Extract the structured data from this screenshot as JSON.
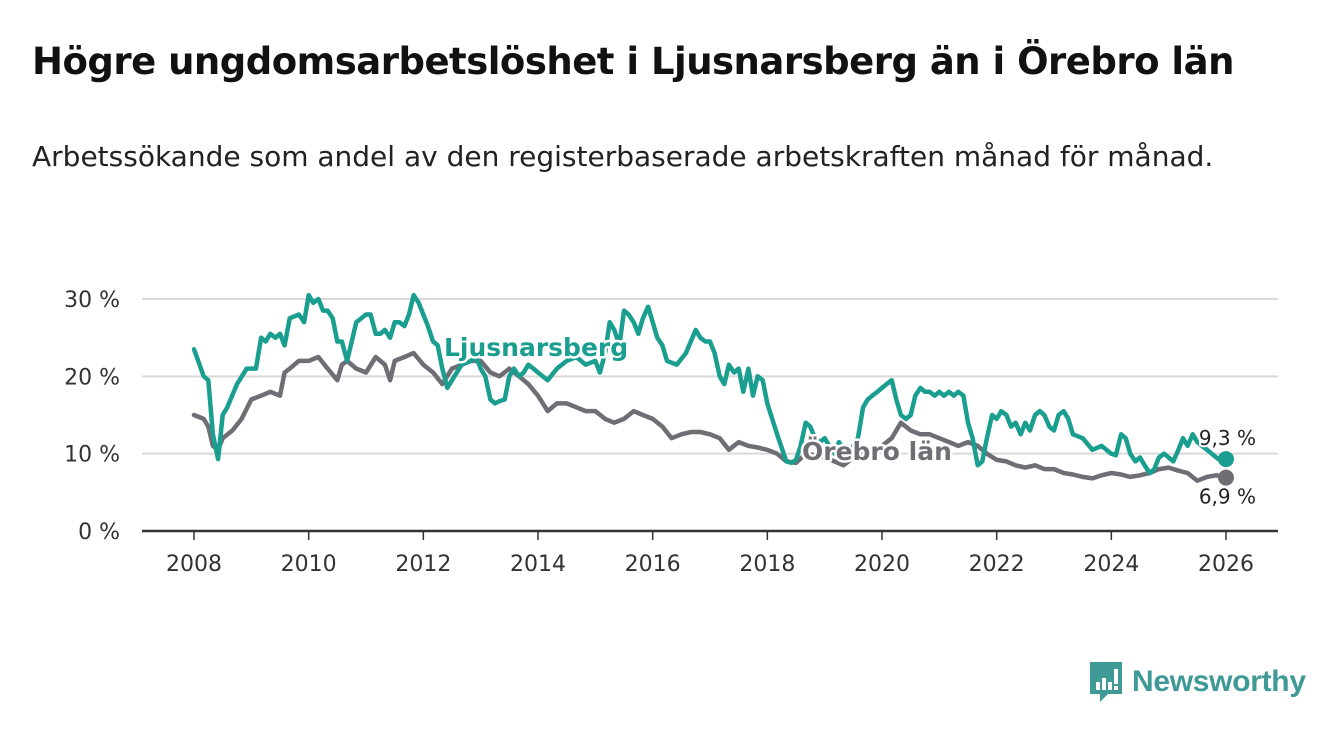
{
  "header": {
    "title": "Högre ungdomsarbetslöshet i Ljusnarsberg än i Örebro län",
    "subtitle": "Arbetssökande som andel av den registerbaserade arbetskraften månad för månad."
  },
  "branding": {
    "logo_text": "Newsworthy",
    "logo_icon": "bar-chart-speech-bubble-icon",
    "color": "#3f9a97"
  },
  "chart_data": {
    "type": "line",
    "title": "Högre ungdomsarbetslöshet i Ljusnarsberg än i Örebro län",
    "subtitle": "Arbetssökande som andel av den registerbaserade arbetskraften månad för månad.",
    "xlabel": "",
    "ylabel": "",
    "xlim": [
      2007.75,
      2027.0
    ],
    "ylim": [
      0,
      30
    ],
    "grid": true,
    "x_ticks": [
      2008,
      2010,
      2012,
      2014,
      2016,
      2018,
      2020,
      2022,
      2024,
      2026
    ],
    "x_tick_labels": [
      "2008",
      "2010",
      "2012",
      "2014",
      "2016",
      "2018",
      "2020",
      "2022",
      "2024",
      "2026"
    ],
    "y_ticks": [
      0,
      10,
      20,
      30
    ],
    "y_tick_labels": [
      "0 %",
      "10 %",
      "20 %",
      "30 %"
    ],
    "legend": "inline labels",
    "series": [
      {
        "name": "Ljusnarsberg",
        "color": "#1a9e8f",
        "end_label": "9,3 %",
        "x": [
          2008.0,
          2008.17,
          2008.25,
          2008.33,
          2008.42,
          2008.5,
          2008.58,
          2008.75,
          2008.92,
          2009.08,
          2009.17,
          2009.25,
          2009.33,
          2009.42,
          2009.5,
          2009.58,
          2009.67,
          2009.83,
          2009.92,
          2010.0,
          2010.08,
          2010.17,
          2010.25,
          2010.33,
          2010.42,
          2010.5,
          2010.58,
          2010.67,
          2010.83,
          2011.0,
          2011.08,
          2011.17,
          2011.25,
          2011.33,
          2011.42,
          2011.5,
          2011.58,
          2011.67,
          2011.75,
          2011.83,
          2011.92,
          2012.0,
          2012.08,
          2012.17,
          2012.25,
          2012.33,
          2012.42,
          2012.5,
          2012.67,
          2012.83,
          2012.92,
          2013.0,
          2013.08,
          2013.17,
          2013.25,
          2013.33,
          2013.42,
          2013.5,
          2013.58,
          2013.67,
          2013.75,
          2013.83,
          2013.92,
          2014.0,
          2014.17,
          2014.33,
          2014.5,
          2014.67,
          2014.83,
          2015.0,
          2015.08,
          2015.17,
          2015.25,
          2015.33,
          2015.42,
          2015.5,
          2015.58,
          2015.67,
          2015.75,
          2015.83,
          2015.92,
          2016.0,
          2016.08,
          2016.17,
          2016.25,
          2016.42,
          2016.58,
          2016.75,
          2016.83,
          2016.92,
          2017.0,
          2017.08,
          2017.17,
          2017.25,
          2017.33,
          2017.42,
          2017.5,
          2017.58,
          2017.67,
          2017.75,
          2017.83,
          2017.92,
          2018.0,
          2018.17,
          2018.33,
          2018.42,
          2018.5,
          2018.58,
          2018.67,
          2018.75,
          2018.83,
          2018.92,
          2019.0,
          2019.08,
          2019.17,
          2019.25,
          2019.33,
          2019.42,
          2019.5,
          2019.58,
          2019.67,
          2019.75,
          2019.83,
          2019.92,
          2020.0,
          2020.08,
          2020.17,
          2020.25,
          2020.33,
          2020.42,
          2020.5,
          2020.58,
          2020.67,
          2020.75,
          2020.83,
          2020.92,
          2021.0,
          2021.08,
          2021.17,
          2021.25,
          2021.33,
          2021.42,
          2021.5,
          2021.58,
          2021.67,
          2021.75,
          2021.83,
          2021.92,
          2022.0,
          2022.08,
          2022.17,
          2022.25,
          2022.33,
          2022.42,
          2022.5,
          2022.58,
          2022.67,
          2022.75,
          2022.83,
          2022.92,
          2023.0,
          2023.08,
          2023.17,
          2023.25,
          2023.33,
          2023.5,
          2023.67,
          2023.83,
          2024.0,
          2024.08,
          2024.17,
          2024.25,
          2024.33,
          2024.42,
          2024.5,
          2024.58,
          2024.67,
          2024.75,
          2024.83,
          2024.92,
          2025.0,
          2025.08,
          2025.17,
          2025.25,
          2025.33,
          2025.42,
          2025.5,
          2025.58,
          2025.67,
          2025.75,
          2025.83,
          2025.92,
          2026.0
        ],
        "values": [
          23.5,
          20.0,
          19.5,
          12.5,
          9.3,
          15.0,
          16.0,
          19.0,
          21.0,
          21.0,
          25.0,
          24.5,
          25.5,
          25.0,
          25.5,
          24.0,
          27.5,
          28.0,
          27.0,
          30.5,
          29.5,
          30.0,
          28.5,
          28.5,
          27.5,
          24.5,
          24.5,
          22.0,
          27.0,
          28.0,
          28.0,
          25.5,
          25.5,
          26.0,
          25.0,
          27.0,
          27.0,
          26.5,
          28.0,
          30.5,
          29.5,
          28.0,
          26.5,
          24.5,
          24.0,
          21.0,
          18.5,
          19.5,
          21.5,
          22.0,
          22.5,
          21.0,
          20.0,
          17.0,
          16.5,
          16.8,
          17.0,
          20.0,
          21.0,
          20.0,
          20.5,
          21.5,
          21.0,
          20.5,
          19.5,
          21.0,
          22.0,
          22.5,
          21.5,
          22.0,
          20.5,
          23.0,
          27.0,
          26.0,
          24.0,
          28.5,
          28.0,
          27.0,
          25.5,
          27.5,
          29.0,
          27.0,
          25.0,
          24.0,
          22.0,
          21.5,
          23.0,
          26.0,
          25.0,
          24.5,
          24.5,
          23.0,
          20.0,
          19.0,
          21.5,
          20.5,
          21.0,
          18.0,
          21.0,
          17.5,
          20.0,
          19.5,
          16.5,
          12.5,
          9.0,
          8.8,
          9.2,
          11.0,
          14.0,
          13.5,
          12.0,
          11.5,
          12.0,
          11.0,
          10.0,
          11.5,
          10.5,
          9.5,
          11.0,
          12.0,
          16.0,
          17.0,
          17.5,
          18.0,
          18.5,
          19.0,
          19.5,
          17.0,
          15.0,
          14.5,
          15.0,
          17.5,
          18.5,
          18.0,
          18.0,
          17.5,
          18.0,
          17.5,
          18.0,
          17.5,
          18.0,
          17.5,
          14.0,
          12.0,
          8.5,
          9.0,
          12.0,
          15.0,
          14.5,
          15.5,
          15.0,
          13.5,
          14.0,
          12.5,
          14.0,
          13.0,
          15.0,
          15.5,
          15.0,
          13.5,
          13.0,
          15.0,
          15.5,
          14.5,
          12.5,
          12.0,
          10.5,
          11.0,
          10.0,
          9.8,
          12.5,
          12.0,
          10.0,
          9.0,
          9.5,
          8.5,
          7.5,
          8.0,
          9.5,
          10.0,
          9.5,
          9.0,
          10.5,
          12.0,
          11.0,
          12.5,
          11.5,
          11.0,
          10.5,
          10.0,
          9.5,
          9.0,
          9.3
        ]
      },
      {
        "name": "Örebro län",
        "color": "#6e6e74",
        "end_label": "6,9 %",
        "x": [
          2008.0,
          2008.17,
          2008.25,
          2008.33,
          2008.42,
          2008.5,
          2008.67,
          2008.83,
          2009.0,
          2009.17,
          2009.33,
          2009.5,
          2009.58,
          2009.67,
          2009.83,
          2010.0,
          2010.17,
          2010.33,
          2010.5,
          2010.58,
          2010.67,
          2010.83,
          2011.0,
          2011.17,
          2011.33,
          2011.42,
          2011.5,
          2011.67,
          2011.83,
          2012.0,
          2012.17,
          2012.33,
          2012.5,
          2012.67,
          2012.83,
          2013.0,
          2013.17,
          2013.33,
          2013.5,
          2013.67,
          2013.83,
          2014.0,
          2014.17,
          2014.33,
          2014.5,
          2014.67,
          2014.83,
          2015.0,
          2015.17,
          2015.33,
          2015.5,
          2015.67,
          2015.83,
          2016.0,
          2016.17,
          2016.33,
          2016.5,
          2016.67,
          2016.83,
          2017.0,
          2017.17,
          2017.33,
          2017.5,
          2017.67,
          2017.83,
          2018.0,
          2018.17,
          2018.33,
          2018.5,
          2018.67,
          2018.83,
          2019.0,
          2019.17,
          2019.33,
          2019.5,
          2019.67,
          2019.83,
          2020.0,
          2020.17,
          2020.33,
          2020.5,
          2020.67,
          2020.83,
          2021.0,
          2021.17,
          2021.33,
          2021.5,
          2021.67,
          2021.83,
          2022.0,
          2022.17,
          2022.33,
          2022.5,
          2022.67,
          2022.83,
          2023.0,
          2023.17,
          2023.33,
          2023.5,
          2023.67,
          2023.83,
          2024.0,
          2024.17,
          2024.33,
          2024.5,
          2024.67,
          2024.83,
          2025.0,
          2025.17,
          2025.33,
          2025.5,
          2025.67,
          2025.83,
          2026.0
        ],
        "values": [
          15.0,
          14.5,
          13.5,
          11.0,
          10.5,
          12.0,
          13.0,
          14.5,
          17.0,
          17.5,
          18.0,
          17.5,
          20.5,
          21.0,
          22.0,
          22.0,
          22.5,
          21.0,
          19.5,
          21.5,
          22.0,
          21.0,
          20.5,
          22.5,
          21.5,
          19.5,
          22.0,
          22.5,
          23.0,
          21.5,
          20.5,
          19.0,
          21.0,
          21.5,
          22.0,
          22.0,
          20.5,
          20.0,
          21.0,
          20.0,
          19.0,
          17.5,
          15.5,
          16.5,
          16.5,
          16.0,
          15.5,
          15.5,
          14.5,
          14.0,
          14.5,
          15.5,
          15.0,
          14.5,
          13.5,
          12.0,
          12.5,
          12.8,
          12.8,
          12.5,
          12.0,
          10.5,
          11.5,
          11.0,
          10.8,
          10.5,
          10.0,
          9.0,
          8.8,
          10.0,
          9.8,
          9.5,
          9.0,
          8.5,
          9.5,
          10.0,
          10.5,
          11.0,
          12.0,
          14.0,
          13.0,
          12.5,
          12.5,
          12.0,
          11.5,
          11.0,
          11.5,
          11.0,
          10.0,
          9.2,
          9.0,
          8.5,
          8.2,
          8.5,
          8.0,
          8.0,
          7.5,
          7.3,
          7.0,
          6.8,
          7.2,
          7.5,
          7.3,
          7.0,
          7.2,
          7.5,
          8.0,
          8.2,
          7.8,
          7.5,
          6.5,
          7.0,
          7.2,
          6.9
        ]
      }
    ]
  }
}
